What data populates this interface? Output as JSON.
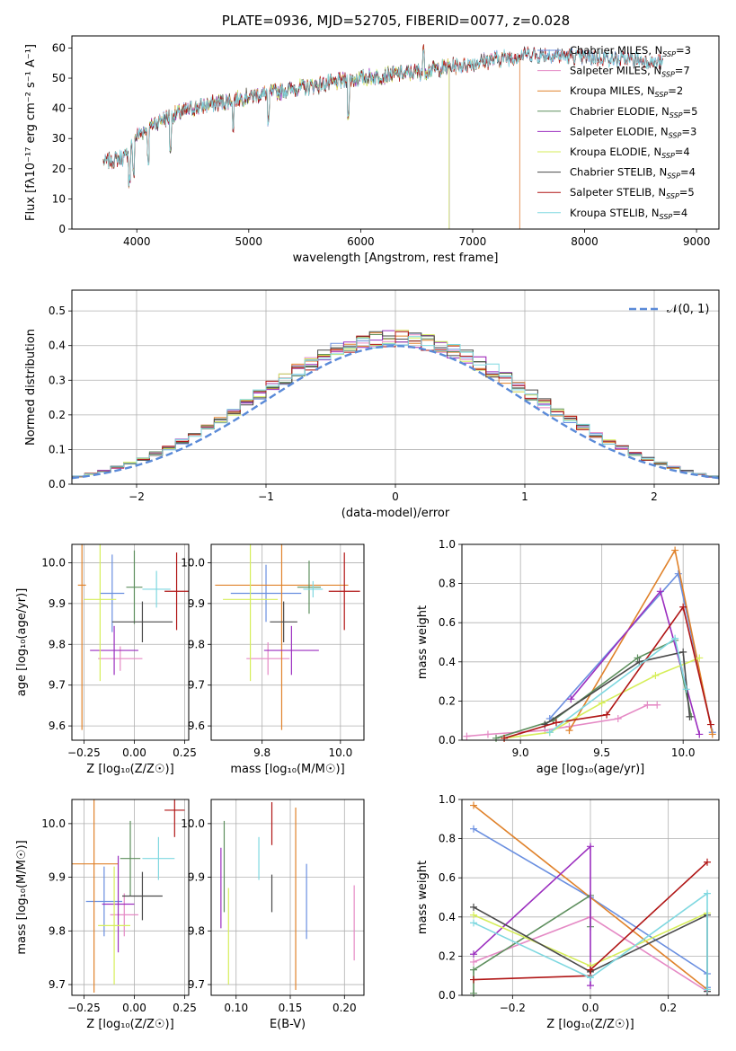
{
  "figure": {
    "title": "PLATE=0936, MJD=52705, FIBERID=0077, z=0.028"
  },
  "colors": {
    "series": [
      "#6a8fe0",
      "#e58ac5",
      "#e0822b",
      "#5e8f5e",
      "#9b2ebf",
      "#d6ee5a",
      "#4a4a4a",
      "#b01515",
      "#7fd8e0"
    ],
    "gaussian": "#5a8ad8",
    "grid": "#b0b0b0"
  },
  "chart_data": [
    {
      "id": "spectrum",
      "type": "line",
      "xlabel": "wavelength [Angstrom, rest frame]",
      "ylabel": "Flux [fλ10⁻¹⁷ erg cm⁻² s⁻¹ A⁻¹]",
      "xlim": [
        3420,
        9200
      ],
      "ylim": [
        0,
        64
      ],
      "xticks": [
        4000,
        5000,
        6000,
        7000,
        8000,
        9000
      ],
      "yticks": [
        0,
        10,
        20,
        30,
        40,
        50,
        60
      ],
      "grid": false,
      "legend_position": "top-right",
      "continuum": {
        "x": [
          3700,
          3900,
          4000,
          4200,
          4500,
          5000,
          5500,
          6000,
          6500,
          7000,
          7500,
          8000,
          8500,
          8700
        ],
        "y": [
          22,
          24,
          31,
          36,
          40,
          44,
          47,
          50,
          52,
          55,
          58,
          57,
          56,
          55
        ]
      },
      "series": [
        {
          "name": "Chabrier MILES, N_SSP=3",
          "x_range": [
            3700,
            8700
          ]
        },
        {
          "name": "Salpeter MILES, N_SSP=7",
          "x_range": [
            3700,
            7420
          ]
        },
        {
          "name": "Kroupa MILES, N_SSP=2",
          "x_range": [
            3700,
            7420
          ]
        },
        {
          "name": "Chabrier ELODIE, N_SSP=5",
          "x_range": [
            3900,
            6790
          ]
        },
        {
          "name": "Salpeter ELODIE, N_SSP=3",
          "x_range": [
            3900,
            6790
          ]
        },
        {
          "name": "Kroupa ELODIE, N_SSP=4",
          "x_range": [
            3900,
            6790
          ]
        },
        {
          "name": "Chabrier STELIB, N_SSP=4",
          "x_range": [
            3700,
            8700
          ]
        },
        {
          "name": "Salpeter STELIB, N_SSP=5",
          "x_range": [
            3700,
            8700
          ]
        },
        {
          "name": "Kroupa STELIB, N_SSP=4",
          "x_range": [
            3700,
            8700
          ]
        }
      ],
      "legend_labels": [
        {
          "base": "Chabrier MILES, N",
          "sub": "SSP",
          "tail": "=3"
        },
        {
          "base": "Salpeter MILES, N",
          "sub": "SSP",
          "tail": "=7"
        },
        {
          "base": "Kroupa MILES, N",
          "sub": "SSP",
          "tail": "=2"
        },
        {
          "base": "Chabrier ELODIE, N",
          "sub": "SSP",
          "tail": "=5"
        },
        {
          "base": "Salpeter ELODIE, N",
          "sub": "SSP",
          "tail": "=3"
        },
        {
          "base": "Kroupa ELODIE, N",
          "sub": "SSP",
          "tail": "=4"
        },
        {
          "base": "Chabrier STELIB, N",
          "sub": "SSP",
          "tail": "=4"
        },
        {
          "base": "Salpeter STELIB, N",
          "sub": "SSP",
          "tail": "=5"
        },
        {
          "base": "Kroupa STELIB, N",
          "sub": "SSP",
          "tail": "=4"
        }
      ]
    },
    {
      "id": "residuals",
      "type": "line",
      "xlabel": "(data-model)/error",
      "ylabel": "Normed distribution",
      "xlim": [
        -2.5,
        2.5
      ],
      "ylim": [
        0,
        0.56
      ],
      "xticks": [
        -2,
        -1,
        0,
        1,
        2
      ],
      "xtick_labels": [
        "−2",
        "−1",
        "0",
        "1",
        "2"
      ],
      "yticks": [
        0.0,
        0.1,
        0.2,
        0.3,
        0.4,
        0.5
      ],
      "ytick_labels": [
        "0.0",
        "0.1",
        "0.2",
        "0.3",
        "0.4",
        "0.5"
      ],
      "grid": true,
      "bin_width": 0.1,
      "legend_position": "top-right",
      "legend_label": "𝒩(0, 1)",
      "gaussian": {
        "mean": 0,
        "sigma": 1
      }
    },
    {
      "id": "age-vs-Z",
      "type": "scatter",
      "xlabel": "Z [log₁₀(Z/Z☉)]",
      "ylabel": "age  [log₁₀(age/yr)]",
      "xlim": [
        -0.31,
        0.27
      ],
      "ylim": [
        9.565,
        10.045
      ],
      "xticks": [
        -0.25,
        0.0,
        0.25
      ],
      "xtick_labels": [
        "−0.25",
        "0.00",
        "0.25"
      ],
      "yticks": [
        9.6,
        9.7,
        9.8,
        9.9,
        10.0
      ],
      "yticks_labels": [
        "9.6",
        "9.7",
        "9.8",
        "9.9",
        "10.0"
      ],
      "grid": true,
      "points": [
        {
          "x": -0.11,
          "xerr": 0.06,
          "y": 9.925,
          "yerr": 0.095
        },
        {
          "x": -0.07,
          "xerr": 0.11,
          "y": 9.765,
          "yerr": 0.03
        },
        {
          "x": -0.26,
          "xerr": 0.02,
          "y": 9.945,
          "yerr": 0.355
        },
        {
          "x": 0.0,
          "xerr": 0.04,
          "y": 9.94,
          "yerr": 0.09
        },
        {
          "x": -0.1,
          "xerr": 0.12,
          "y": 9.785,
          "yerr": 0.06
        },
        {
          "x": -0.17,
          "xerr": 0.08,
          "y": 9.91,
          "yerr": 0.2
        },
        {
          "x": 0.04,
          "xerr": 0.15,
          "y": 9.855,
          "yerr": 0.05
        },
        {
          "x": 0.21,
          "xerr": 0.06,
          "y": 9.93,
          "yerr": 0.095
        },
        {
          "x": 0.11,
          "xerr": 0.07,
          "y": 9.935,
          "yerr": 0.045
        }
      ]
    },
    {
      "id": "age-vs-mass",
      "type": "scatter",
      "xlabel": "mass [log₁₀(M/M☉)]",
      "ylabel": "",
      "xlim": [
        9.67,
        10.06
      ],
      "ylim": [
        9.565,
        10.045
      ],
      "xticks": [
        9.8,
        10.0
      ],
      "xtick_labels": [
        "9.8",
        "10.0"
      ],
      "yticks": [
        9.6,
        9.7,
        9.8,
        9.9,
        10.0
      ],
      "yticks_labels": [
        "9.6",
        "9.7",
        "9.8",
        "9.9",
        "10.0"
      ],
      "grid": true,
      "points": [
        {
          "x": 9.81,
          "xerr": 0.09,
          "y": 9.925,
          "yerr": 0.07
        },
        {
          "x": 9.815,
          "xerr": 0.055,
          "y": 9.765,
          "yerr": 0.04
        },
        {
          "x": 9.85,
          "xerr": 0.17,
          "y": 9.945,
          "yerr": 0.355
        },
        {
          "x": 9.92,
          "xerr": 0.03,
          "y": 9.94,
          "yerr": 0.065
        },
        {
          "x": 9.875,
          "xerr": 0.07,
          "y": 9.785,
          "yerr": 0.06
        },
        {
          "x": 9.77,
          "xerr": 0.07,
          "y": 9.91,
          "yerr": 0.2
        },
        {
          "x": 9.855,
          "xerr": 0.035,
          "y": 9.855,
          "yerr": 0.05
        },
        {
          "x": 10.01,
          "xerr": 0.04,
          "y": 9.93,
          "yerr": 0.095
        },
        {
          "x": 9.93,
          "xerr": 0.025,
          "y": 9.935,
          "yerr": 0.02
        }
      ]
    },
    {
      "id": "massweight-vs-age",
      "type": "line",
      "xlabel": "age  [log₁₀(age/yr)]",
      "ylabel": "mass weight",
      "xlim": [
        8.64,
        10.22
      ],
      "ylim": [
        0,
        1
      ],
      "xticks": [
        9.0,
        9.5,
        10.0
      ],
      "xtick_labels": [
        "9.0",
        "9.5",
        "10.0"
      ],
      "yticks": [
        0.0,
        0.2,
        0.4,
        0.6,
        0.8,
        1.0
      ],
      "ytick_labels": [
        "0.0",
        "0.2",
        "0.4",
        "0.6",
        "0.8",
        "1.0"
      ],
      "grid": true,
      "series": [
        {
          "x": [
            9.18,
            9.97,
            10.18
          ],
          "y": [
            0.11,
            0.85,
            0.04
          ]
        },
        {
          "x": [
            8.67,
            8.8,
            9.15,
            9.3,
            9.6,
            9.78,
            9.84
          ],
          "y": [
            0.02,
            0.03,
            0.05,
            0.07,
            0.11,
            0.18,
            0.18
          ]
        },
        {
          "x": [
            9.3,
            9.95,
            10.18
          ],
          "y": [
            0.05,
            0.97,
            0.03
          ]
        },
        {
          "x": [
            8.85,
            9.2,
            9.72,
            9.95,
            10.05
          ],
          "y": [
            0.01,
            0.1,
            0.42,
            0.51,
            0.12
          ]
        },
        {
          "x": [
            9.31,
            9.86,
            10.1
          ],
          "y": [
            0.21,
            0.76,
            0.03
          ]
        },
        {
          "x": [
            8.9,
            9.18,
            9.5,
            9.83,
            10.1
          ],
          "y": [
            0.01,
            0.04,
            0.19,
            0.33,
            0.42
          ]
        },
        {
          "x": [
            9.15,
            9.73,
            10.0,
            10.04
          ],
          "y": [
            0.08,
            0.4,
            0.45,
            0.12
          ]
        },
        {
          "x": [
            8.9,
            9.22,
            9.53,
            10.0,
            10.17
          ],
          "y": [
            0.01,
            0.09,
            0.13,
            0.68,
            0.08
          ]
        },
        {
          "x": [
            9.18,
            9.95,
            10.02
          ],
          "y": [
            0.04,
            0.52,
            0.26
          ]
        }
      ]
    },
    {
      "id": "mass-vs-Z",
      "type": "scatter",
      "xlabel": "Z [log₁₀(Z/Z☉)]",
      "ylabel": "mass [log₁₀(M/M☉)]",
      "xlim": [
        -0.31,
        0.27
      ],
      "ylim": [
        9.68,
        10.045
      ],
      "xticks": [
        -0.25,
        0.0,
        0.25
      ],
      "xtick_labels": [
        "−0.25",
        "0.00",
        "0.25"
      ],
      "yticks": [
        9.7,
        9.8,
        9.9,
        10.0
      ],
      "yticks_labels": [
        "9.7",
        "9.8",
        "9.9",
        "10.0"
      ],
      "grid": true,
      "points": [
        {
          "x": -0.15,
          "xerr": 0.09,
          "y": 9.855,
          "yerr": 0.065
        },
        {
          "x": -0.05,
          "xerr": 0.07,
          "y": 9.83,
          "yerr": 0.04
        },
        {
          "x": -0.2,
          "xerr": 0.12,
          "y": 9.925,
          "yerr": 0.24
        },
        {
          "x": -0.02,
          "xerr": 0.05,
          "y": 9.935,
          "yerr": 0.07
        },
        {
          "x": -0.08,
          "xerr": 0.08,
          "y": 9.85,
          "yerr": 0.09
        },
        {
          "x": -0.1,
          "xerr": 0.08,
          "y": 9.81,
          "yerr": 0.11
        },
        {
          "x": 0.04,
          "xerr": 0.1,
          "y": 9.865,
          "yerr": 0.045
        },
        {
          "x": 0.2,
          "xerr": 0.05,
          "y": 10.025,
          "yerr": 0.05
        },
        {
          "x": 0.12,
          "xerr": 0.08,
          "y": 9.935,
          "yerr": 0.04
        }
      ]
    },
    {
      "id": "mass-vs-ebv",
      "type": "scatter",
      "xlabel": "E(B-V)",
      "ylabel": "",
      "xlim": [
        0.077,
        0.218
      ],
      "ylim": [
        9.68,
        10.045
      ],
      "xticks": [
        0.1,
        0.15,
        0.2
      ],
      "xtick_labels": [
        "0.10",
        "0.15",
        "0.20"
      ],
      "yticks": [
        9.7,
        9.8,
        9.9,
        10.0
      ],
      "yticks_labels": [
        "9.7",
        "9.8",
        "9.9",
        "10.0"
      ],
      "grid": true,
      "points": [
        {
          "x": 0.165,
          "y": 9.855,
          "yerr": 0.07
        },
        {
          "x": 0.209,
          "y": 9.815,
          "yerr": 0.07
        },
        {
          "x": 0.155,
          "y": 9.86,
          "yerr": 0.17
        },
        {
          "x": 0.089,
          "y": 9.92,
          "yerr": 0.085
        },
        {
          "x": 0.086,
          "y": 9.88,
          "yerr": 0.075
        },
        {
          "x": 0.093,
          "y": 9.79,
          "yerr": 0.09
        },
        {
          "x": 0.133,
          "y": 9.87,
          "yerr": 0.035
        },
        {
          "x": 0.133,
          "y": 10.0,
          "yerr": 0.04
        },
        {
          "x": 0.121,
          "y": 9.935,
          "yerr": 0.04
        }
      ]
    },
    {
      "id": "massweight-vs-Z",
      "type": "line",
      "xlabel": "Z [log₁₀(Z/Z☉)]",
      "ylabel": "mass weight",
      "xlim": [
        -0.33,
        0.33
      ],
      "ylim": [
        0,
        1
      ],
      "xticks": [
        -0.2,
        0.0,
        0.2
      ],
      "xtick_labels": [
        "−0.2",
        "0.0",
        "0.2"
      ],
      "yticks": [
        0.0,
        0.2,
        0.4,
        0.6,
        0.8,
        1.0
      ],
      "ytick_labels": [
        "0.0",
        "0.2",
        "0.4",
        "0.6",
        "0.8",
        "1.0"
      ],
      "grid": true,
      "series": [
        {
          "x": [
            -0.3,
            0.0,
            0.3,
            0.3
          ],
          "y": [
            0.85,
            0.5,
            0.11,
            0.04
          ]
        },
        {
          "x": [
            -0.3,
            0.0,
            0.3
          ],
          "y": [
            0.17,
            0.4,
            0.02
          ]
        },
        {
          "x": [
            -0.3,
            0.3
          ],
          "y": [
            0.97,
            0.03
          ]
        },
        {
          "x": [
            -0.3,
            -0.3,
            0.0,
            0.0
          ],
          "y": [
            0.01,
            0.13,
            0.51,
            0.35
          ]
        },
        {
          "x": [
            -0.3,
            0.0,
            0.0
          ],
          "y": [
            0.21,
            0.76,
            0.05
          ]
        },
        {
          "x": [
            -0.3,
            0.0,
            0.3
          ],
          "y": [
            0.41,
            0.15,
            0.42
          ]
        },
        {
          "x": [
            -0.3,
            0.0,
            0.3,
            0.3
          ],
          "y": [
            0.45,
            0.12,
            0.41,
            0.02
          ]
        },
        {
          "x": [
            -0.3,
            0.0,
            0.0,
            0.3
          ],
          "y": [
            0.08,
            0.1,
            0.13,
            0.68
          ]
        },
        {
          "x": [
            -0.3,
            0.0,
            0.3,
            0.3
          ],
          "y": [
            0.37,
            0.09,
            0.52,
            0.03
          ]
        }
      ]
    }
  ]
}
